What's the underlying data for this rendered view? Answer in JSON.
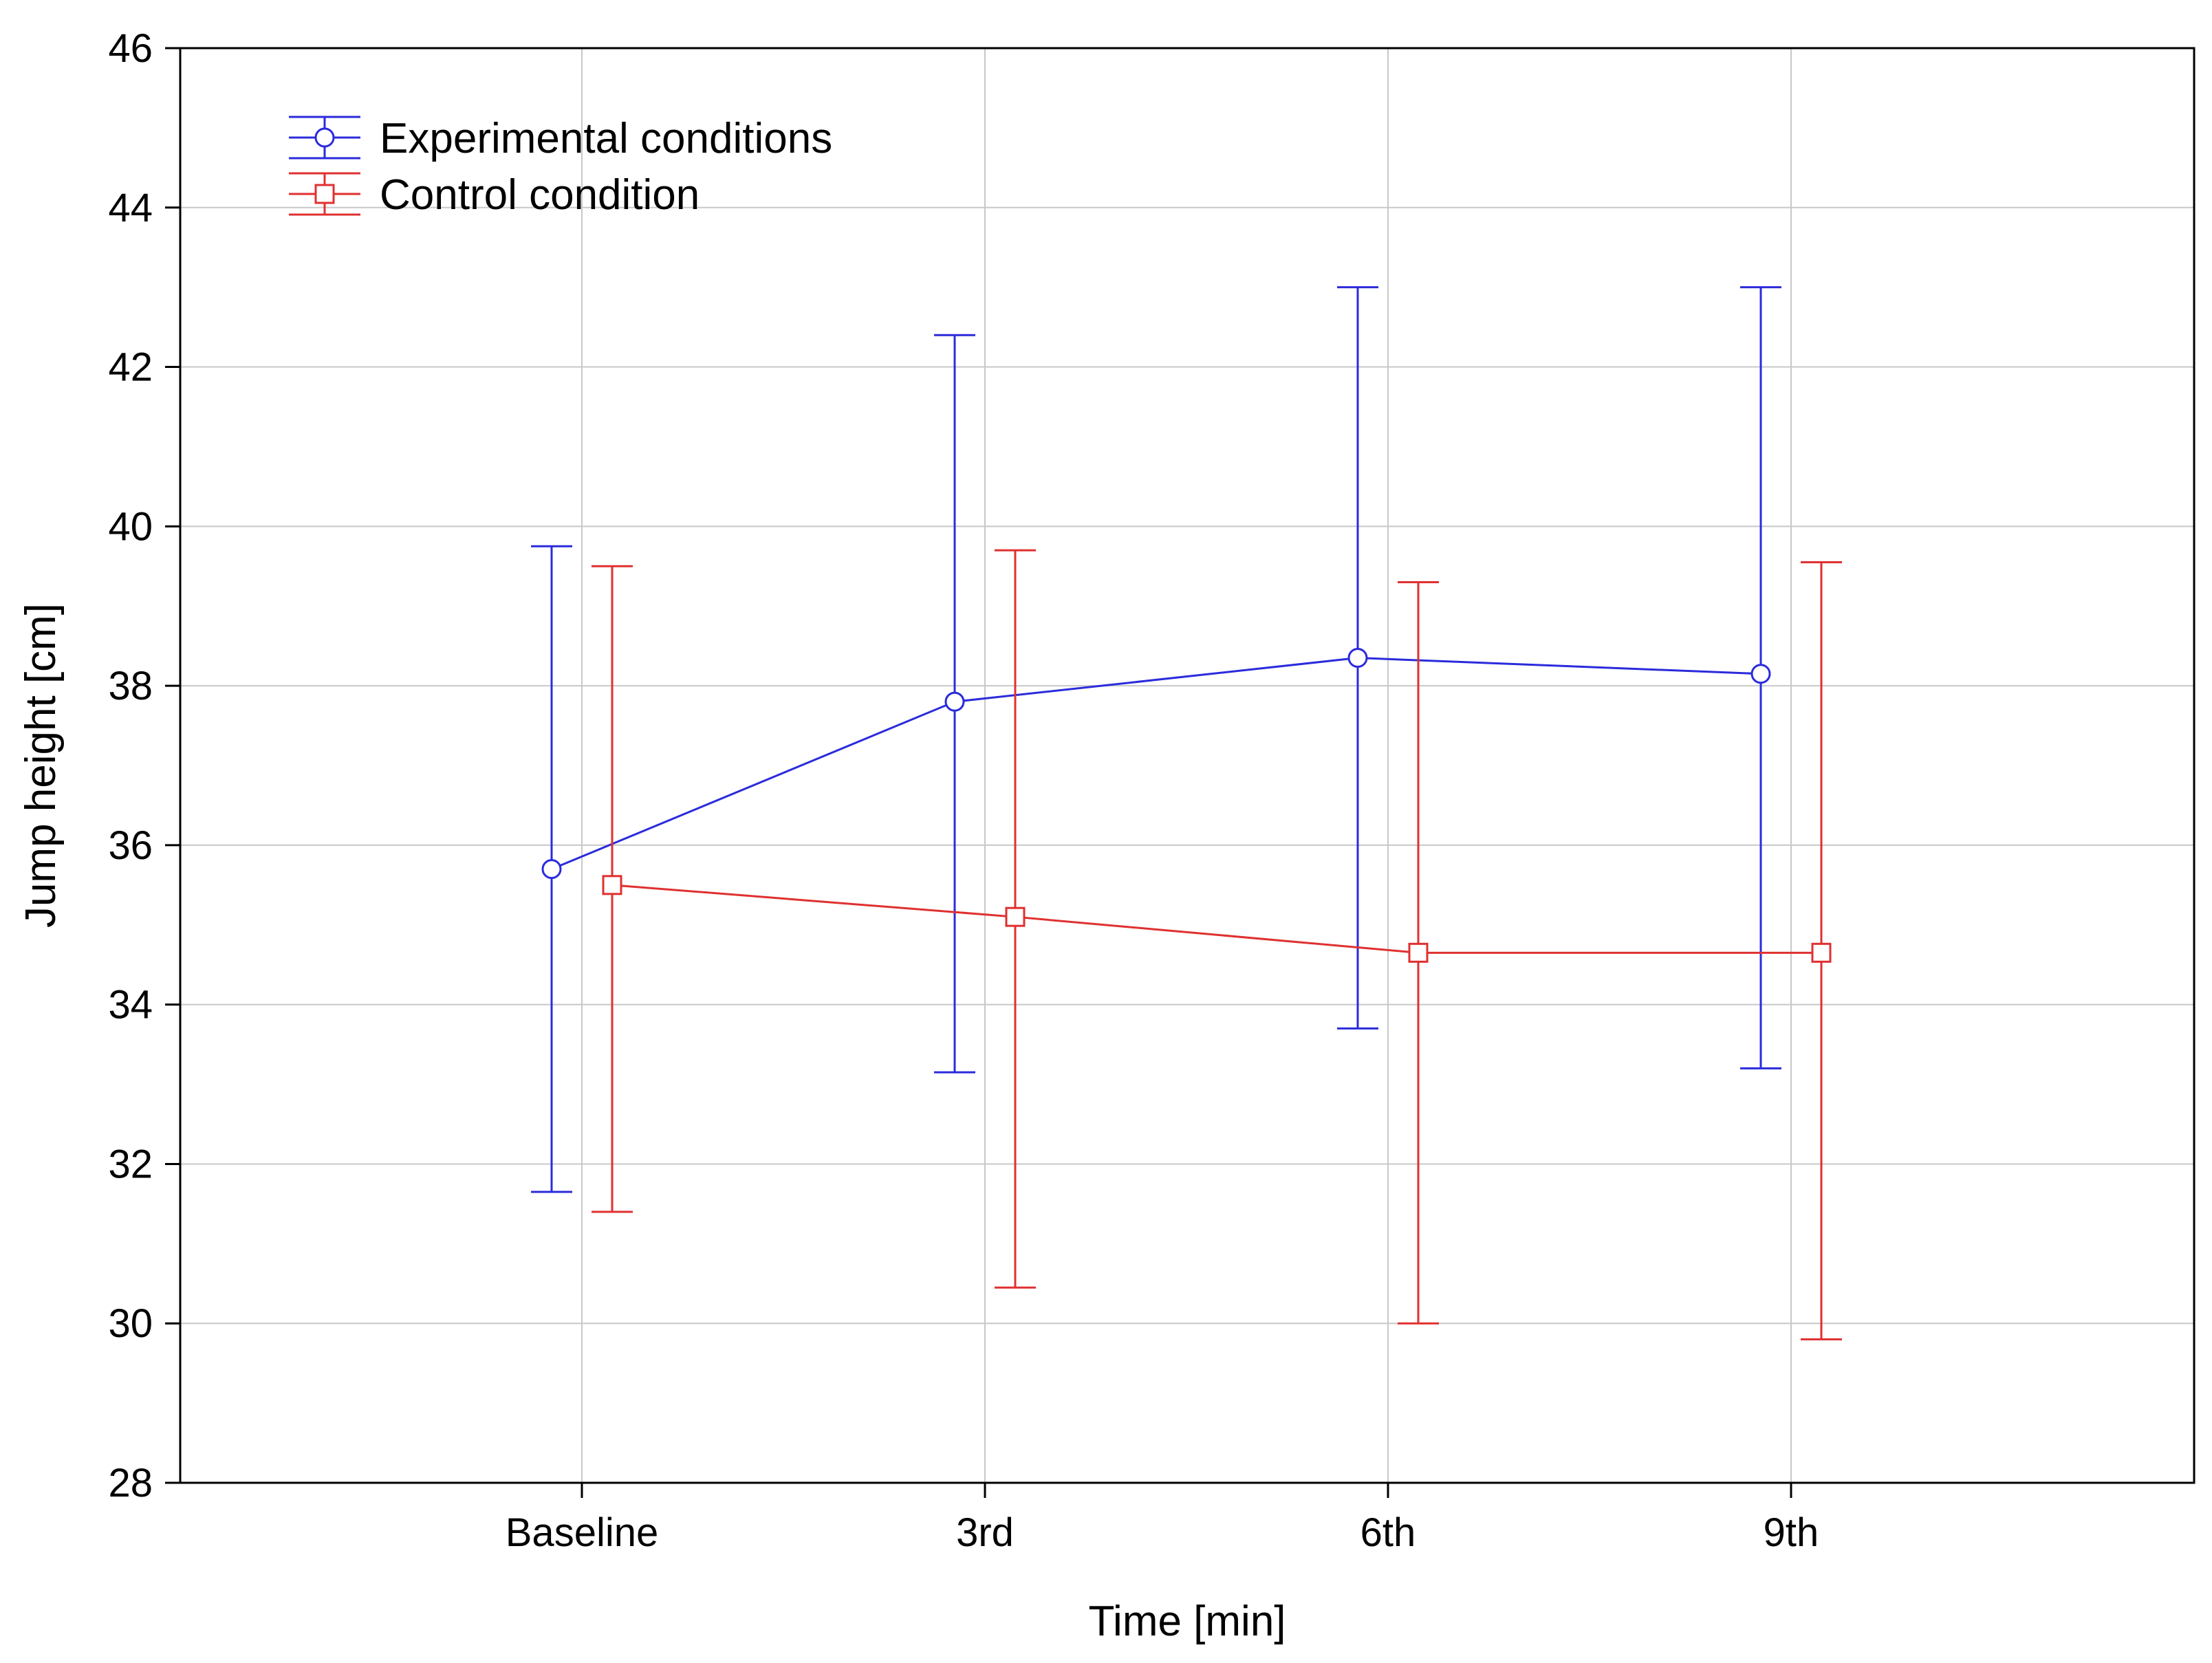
{
  "chart_data": {
    "type": "line",
    "title": "",
    "xlabel": "Time [min]",
    "ylabel": "Jump height [cm]",
    "categories": [
      "Baseline",
      "3rd",
      "6th",
      "9th"
    ],
    "ylim": [
      28,
      46
    ],
    "yticks": [
      28,
      30,
      32,
      34,
      36,
      38,
      40,
      42,
      44,
      46
    ],
    "grid": true,
    "legend_position": "top-left",
    "series": [
      {
        "name": "Experimental conditions",
        "color": "#2b2bdc",
        "marker": "circle",
        "values": [
          35.7,
          37.8,
          38.35,
          38.15
        ],
        "lower": [
          31.65,
          33.15,
          33.7,
          33.2
        ],
        "upper": [
          39.75,
          42.4,
          43.0,
          43.0
        ]
      },
      {
        "name": "Control condition",
        "color": "#e03030",
        "marker": "square",
        "values": [
          35.5,
          35.1,
          34.65,
          34.65
        ],
        "lower": [
          31.4,
          30.45,
          30.0,
          29.8
        ],
        "upper": [
          39.5,
          39.7,
          39.3,
          39.55
        ]
      }
    ]
  }
}
